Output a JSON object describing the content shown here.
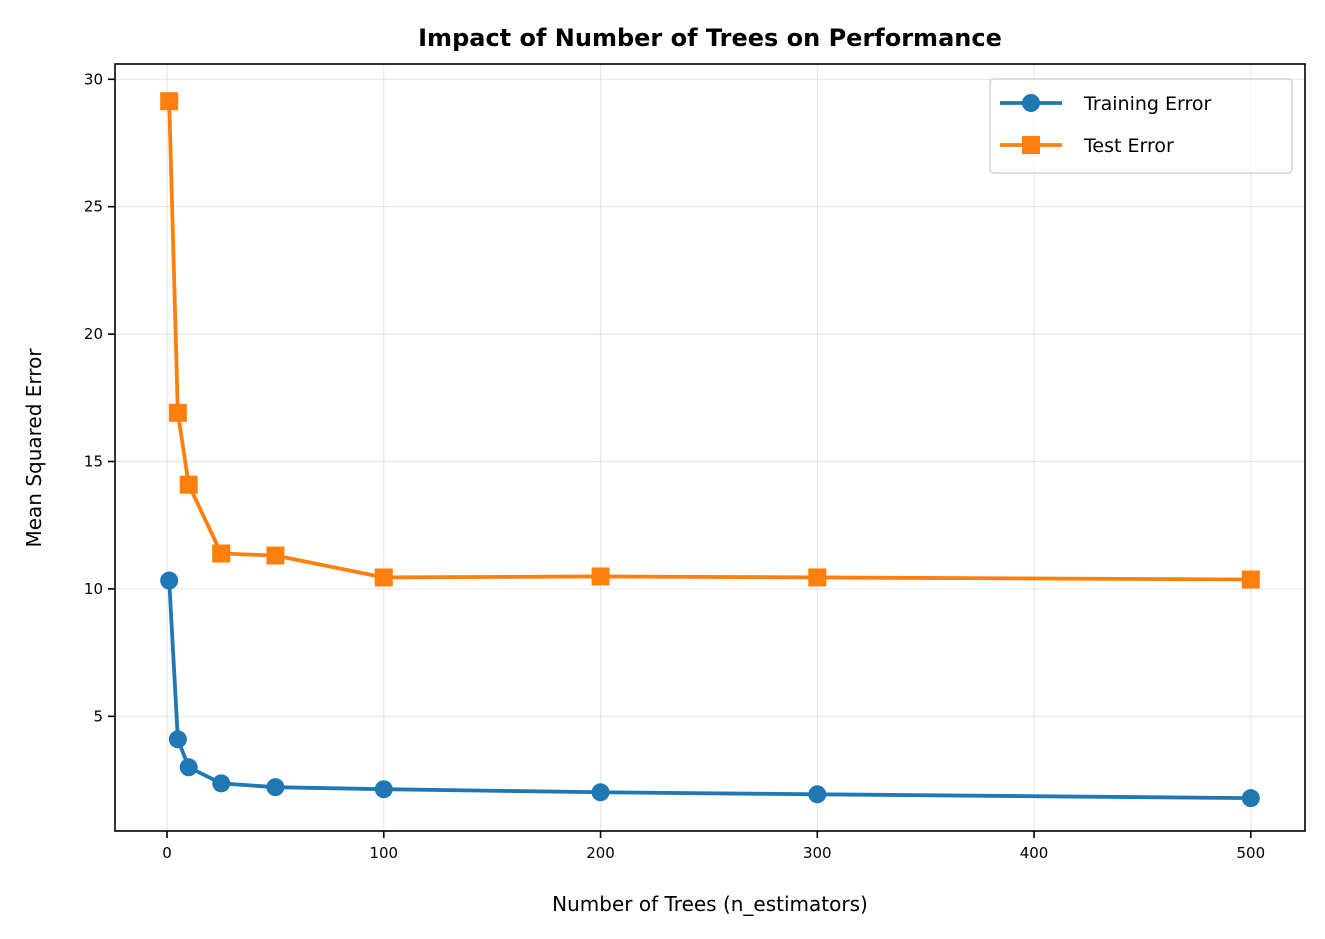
{
  "chart_data": {
    "type": "line",
    "title": "Impact of Number of Trees on Performance",
    "xlabel": "Number of Trees (n_estimators)",
    "ylabel": "Mean Squared Error",
    "x": [
      1,
      5,
      10,
      25,
      50,
      100,
      200,
      300,
      500
    ],
    "series": [
      {
        "name": "Training Error",
        "color": "#1f77b4",
        "marker": "circle",
        "values": [
          10.33,
          4.1,
          3.0,
          2.37,
          2.22,
          2.14,
          2.02,
          1.94,
          1.79
        ]
      },
      {
        "name": "Test Error",
        "color": "#ff7f0e",
        "marker": "square",
        "values": [
          29.14,
          16.91,
          14.09,
          11.39,
          11.31,
          10.45,
          10.49,
          10.45,
          10.37
        ]
      }
    ],
    "xlim": [
      -24,
      525
    ],
    "ylim": [
      0.5,
      30.6
    ],
    "xticks": [
      0,
      100,
      200,
      300,
      400,
      500
    ],
    "yticks": [
      5,
      10,
      15,
      20,
      25,
      30
    ],
    "grid": true,
    "legend": "top-right"
  }
}
